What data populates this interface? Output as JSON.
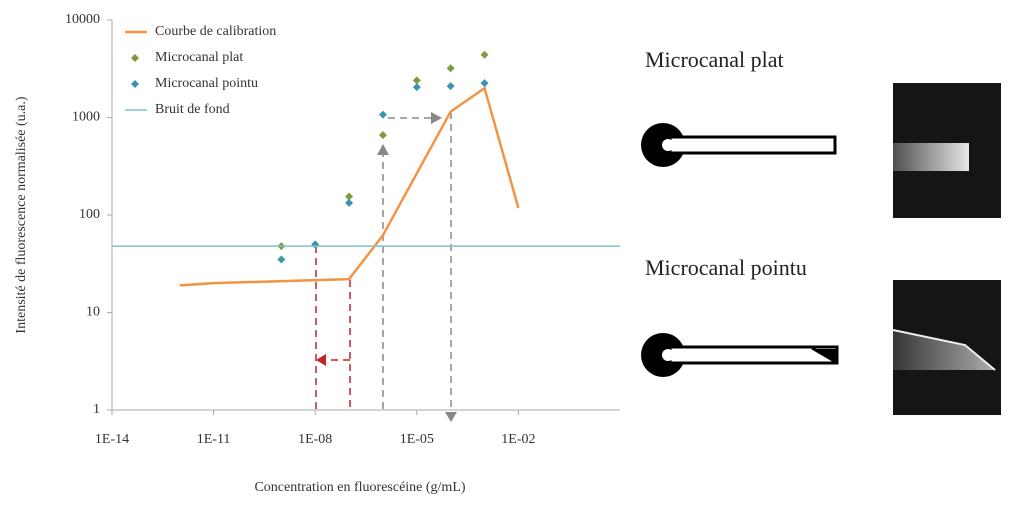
{
  "chart_data": {
    "type": "line",
    "log_x": true,
    "log_y": true,
    "xlabel": "Concentration en fluorescéine (g/mL)",
    "ylabel": "Intensité de fluorescence normalisée (u.a.)",
    "xlim": [
      1e-14,
      10
    ],
    "xticks": [
      {
        "value": 1e-14,
        "label": "1E-14"
      },
      {
        "value": 1e-11,
        "label": "1E-11"
      },
      {
        "value": 1e-08,
        "label": "1E-08"
      },
      {
        "value": 1e-05,
        "label": "1E-05"
      },
      {
        "value": 0.01,
        "label": "1E-02"
      }
    ],
    "ylim": [
      1,
      10000
    ],
    "yticks": [
      1,
      10,
      100,
      1000,
      10000
    ],
    "legend": "top-left",
    "series": [
      {
        "name": "Courbe de calibration",
        "kind": "line",
        "color": "#f39443",
        "x": [
          1e-12,
          1e-11,
          1e-07,
          1e-06,
          0.0001,
          0.001,
          0.01
        ],
        "values": [
          19,
          20,
          22,
          62,
          1150,
          2000,
          118
        ]
      },
      {
        "name": "Microcanal plat",
        "kind": "marker",
        "color": "#7f9a3e",
        "x": [
          1e-09,
          1e-07,
          1e-06,
          1e-05,
          0.0001,
          0.001
        ],
        "values": [
          48,
          155,
          660,
          2400,
          3200,
          4400
        ]
      },
      {
        "name": "Microcanal pointu",
        "kind": "marker",
        "color": "#3a95ad",
        "x": [
          1e-09,
          1e-08,
          1e-07,
          1e-06,
          1e-05,
          0.0001,
          0.001
        ],
        "values": [
          35,
          50,
          133,
          1070,
          2050,
          2100,
          2250
        ]
      },
      {
        "name": "Bruit de fond",
        "kind": "hline",
        "color": "#7cc3c8",
        "value": 48
      }
    ]
  },
  "diagrams": {
    "labels": [
      "Microcanal plat",
      "Microcanal pointu"
    ]
  }
}
